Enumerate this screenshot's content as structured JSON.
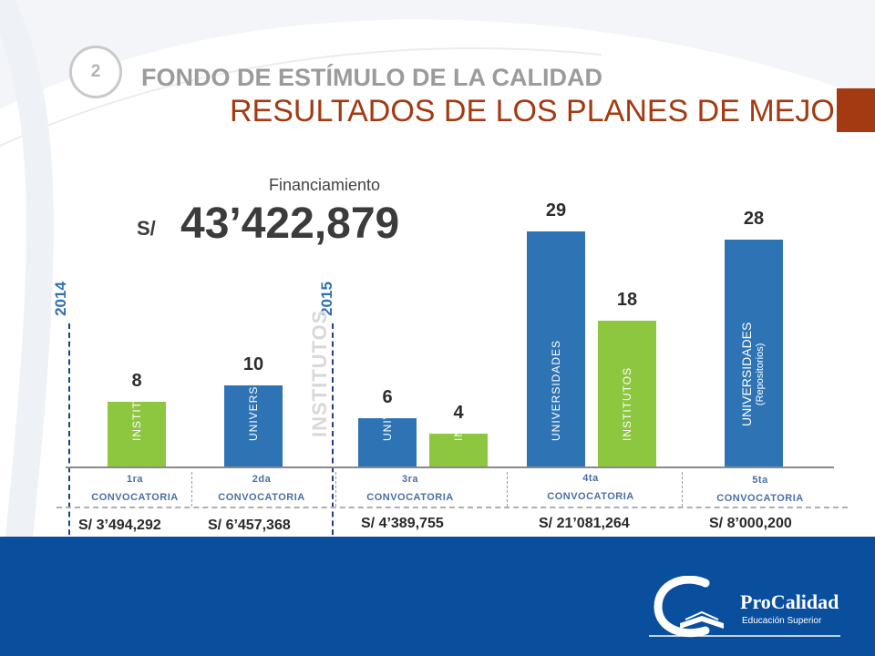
{
  "header": {
    "section_number": "2",
    "subtitle": "FONDO DE ESTÍMULO DE LA CALIDAD",
    "title": "RESULTADOS DE LOS PLANES DE MEJORA"
  },
  "financing": {
    "label": "Financiamiento",
    "currency": "S/",
    "total": "43’422,879"
  },
  "years": [
    "2014",
    "2015"
  ],
  "ghost_label": "INSTITUTOS",
  "colors": {
    "universidades": "#2e74b5",
    "institutos": "#8dc63f",
    "title": "#a33a12",
    "footer": "#0a4f9e"
  },
  "chart_data": {
    "type": "bar",
    "title": "",
    "xlabel": "",
    "ylabel": "",
    "ylim": [
      0,
      29
    ],
    "grid": false,
    "groups": [
      {
        "convocatoria": [
          "1ra",
          "CONVOCATORIA"
        ],
        "amount": "S/ 3’494,292",
        "bars": [
          {
            "category": "INSTITUTOS",
            "value": 8
          }
        ]
      },
      {
        "convocatoria": [
          "2da",
          "CONVOCATORIA"
        ],
        "amount": "S/ 6’457,368",
        "bars": [
          {
            "category": "UNIVERSIDADES",
            "value": 10
          }
        ]
      },
      {
        "convocatoria": [
          "3ra",
          "CONVOCATORIA"
        ],
        "amount": "S/ 4’389,755",
        "bars": [
          {
            "category": "UNIVERSIDADES",
            "value": 6
          },
          {
            "category": "INSTITUTOS",
            "value": 4
          }
        ]
      },
      {
        "convocatoria": [
          "4ta",
          "CONVOCATORIA"
        ],
        "amount": "S/ 21’081,264",
        "bars": [
          {
            "category": "UNIVERSIDADES",
            "value": 29
          },
          {
            "category": "INSTITUTOS",
            "value": 18
          }
        ]
      },
      {
        "convocatoria": [
          "5ta",
          "CONVOCATORIA"
        ],
        "amount": "S/ 8’000,200",
        "bars": [
          {
            "category": "UNIVERSIDADES",
            "sub": "(Repositorios)",
            "value": 28
          }
        ]
      }
    ]
  },
  "logo": {
    "name": "ProCalidad",
    "tagline": "Educación Superior"
  }
}
